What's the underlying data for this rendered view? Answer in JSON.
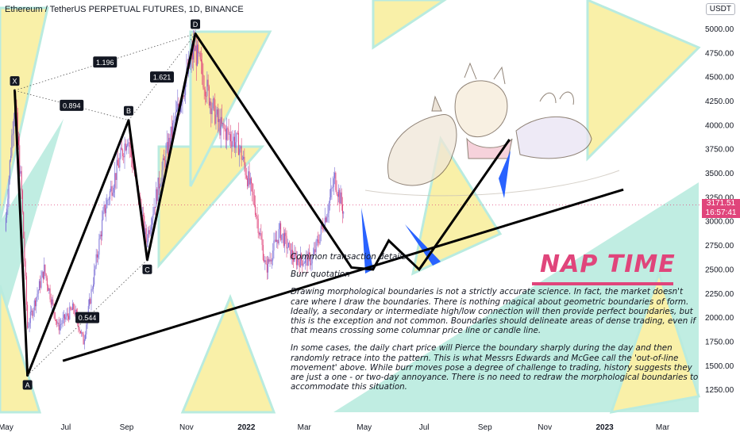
{
  "header": {
    "title": "Ethereum / TetherUS PERPETUAL FUTURES, 1D, BINANCE",
    "currency": "USDT"
  },
  "price_tag": {
    "price": "3171.51",
    "countdown": "16:57:41"
  },
  "note": {
    "heading": "Common transaction details",
    "subheading": "Burr quotation",
    "paragraph1": "Drawing morphological boundaries is not a strictly accurate science. In fact, the market doesn't care where I draw the boundaries. There is nothing magical about geometric boundaries of form. Ideally, a secondary or intermediate high/low connection will then provide perfect boundaries, but this is the exception and not common. Boundaries should delineate areas of dense trading, even if that means crossing some columnar price line or candle line.",
    "paragraph2": "In some cases, the daily chart price will Pierce the boundary sharply during the day and then randomly retrace into the pattern. This is what Messrs Edwards and McGee call the 'out-of-line movement' above. While burr moves pose a degree of challenge to trading, history suggests they are just a one - or two-day annoyance. There is no need to redraw the morphological boundaries to accommodate this situation."
  },
  "annotation": {
    "nap_time": "NAP TIME"
  },
  "colors": {
    "candle_up": "#7b6fd6",
    "candle_down": "#e0457b",
    "pattern_line": "#000000",
    "yellow_fill": "#f9f0a8",
    "teal_fill": "#b9ebdf",
    "accent_pink": "#e0457b",
    "blue_wedge": "#2962ff"
  },
  "chart_data": {
    "type": "candlestick",
    "symbol": "Ethereum / TetherUS PERPETUAL FUTURES",
    "interval": "1D",
    "exchange": "BINANCE",
    "ylim": [
      1000,
      5300
    ],
    "y_ticks": [
      1250,
      1500,
      1750,
      2000,
      2250,
      2500,
      2750,
      3000,
      3250,
      3500,
      3750,
      4000,
      4250,
      4500,
      4750,
      5000
    ],
    "y_tick_labels": [
      "1250.00",
      "1500.00",
      "1750.00",
      "2000.00",
      "2250.00",
      "2500.00",
      "2750.00",
      "3000.00",
      "3250.00",
      "3500.00",
      "3750.00",
      "4000.00",
      "4250.00",
      "4500.00",
      "4750.00",
      "5000.00"
    ],
    "x_range": [
      "2021-04-25",
      "2023-04-10"
    ],
    "x_ticks": [
      {
        "date": "2021-05-01",
        "label": "May"
      },
      {
        "date": "2021-07-01",
        "label": "Jul"
      },
      {
        "date": "2021-09-01",
        "label": "Sep"
      },
      {
        "date": "2021-11-01",
        "label": "Nov"
      },
      {
        "date": "2022-01-01",
        "label": "2022"
      },
      {
        "date": "2022-03-01",
        "label": "Mar"
      },
      {
        "date": "2022-05-01",
        "label": "May"
      },
      {
        "date": "2022-07-01",
        "label": "Jul"
      },
      {
        "date": "2022-09-01",
        "label": "Sep"
      },
      {
        "date": "2022-11-01",
        "label": "Nov"
      },
      {
        "date": "2023-01-01",
        "label": "2023"
      },
      {
        "date": "2023-03-01",
        "label": "Mar"
      }
    ],
    "last_price": 3171.51,
    "price_path": [
      {
        "date": "2021-05-01",
        "price": 2900
      },
      {
        "date": "2021-05-11",
        "price": 4300
      },
      {
        "date": "2021-05-18",
        "price": 3300
      },
      {
        "date": "2021-05-24",
        "price": 1900
      },
      {
        "date": "2021-06-10",
        "price": 2500
      },
      {
        "date": "2021-06-24",
        "price": 1900
      },
      {
        "date": "2021-07-10",
        "price": 2100
      },
      {
        "date": "2021-07-20",
        "price": 1750
      },
      {
        "date": "2021-08-10",
        "price": 3100
      },
      {
        "date": "2021-09-03",
        "price": 3900
      },
      {
        "date": "2021-09-22",
        "price": 2800
      },
      {
        "date": "2021-10-05",
        "price": 3400
      },
      {
        "date": "2021-10-20",
        "price": 4000
      },
      {
        "date": "2021-11-10",
        "price": 4800
      },
      {
        "date": "2021-11-25",
        "price": 4300
      },
      {
        "date": "2021-12-05",
        "price": 4000
      },
      {
        "date": "2021-12-25",
        "price": 3800
      },
      {
        "date": "2022-01-10",
        "price": 3200
      },
      {
        "date": "2022-01-22",
        "price": 2500
      },
      {
        "date": "2022-02-05",
        "price": 2900
      },
      {
        "date": "2022-02-20",
        "price": 2600
      },
      {
        "date": "2022-03-10",
        "price": 2600
      },
      {
        "date": "2022-03-25",
        "price": 3100
      },
      {
        "date": "2022-04-02",
        "price": 3450
      },
      {
        "date": "2022-04-11",
        "price": 3100
      }
    ],
    "pattern_points": [
      {
        "label": "X",
        "date": "2021-05-10",
        "price": 4360
      },
      {
        "label": "A",
        "date": "2021-05-23",
        "price": 1400
      },
      {
        "label": "B",
        "date": "2021-09-03",
        "price": 4050
      },
      {
        "label": "C",
        "date": "2021-09-22",
        "price": 2600
      },
      {
        "label": "D",
        "date": "2021-11-10",
        "price": 4950
      }
    ],
    "fib_ratios": [
      {
        "label": "1.196",
        "from": "X",
        "to": "D"
      },
      {
        "label": "0.894",
        "from": "X",
        "to": "B"
      },
      {
        "label": "1.621",
        "from": "B",
        "to": "D"
      },
      {
        "label": "0.544",
        "from": "A",
        "to": "C"
      }
    ],
    "projection_path": [
      {
        "date": "2021-11-10",
        "price": 4950
      },
      {
        "date": "2022-04-18",
        "price": 2520
      },
      {
        "date": "2022-05-10",
        "price": 2500
      },
      {
        "date": "2022-05-26",
        "price": 2800
      },
      {
        "date": "2022-06-26",
        "price": 2500
      },
      {
        "date": "2022-09-26",
        "price": 3850
      }
    ],
    "trendline": [
      {
        "date": "2021-06-28",
        "price": 1550
      },
      {
        "date": "2023-01-20",
        "price": 3330
      }
    ]
  }
}
